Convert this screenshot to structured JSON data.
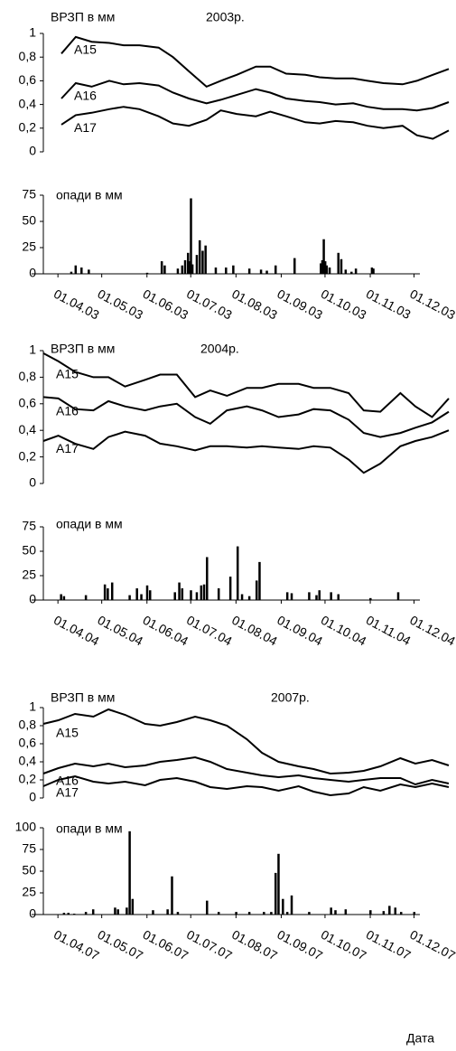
{
  "chart_data": [
    {
      "type": "line",
      "title": "ВРЗП в мм",
      "subtitle": "2003р.",
      "x": [
        "01.04.03",
        "10.04.03",
        "20.04.03",
        "01.05.03",
        "10.05.03",
        "20.05.03",
        "01.06.03",
        "10.06.03",
        "20.06.03",
        "01.07.03",
        "10.07.03",
        "20.07.03",
        "01.08.03",
        "10.08.03",
        "20.08.03",
        "01.09.03",
        "10.09.03",
        "20.09.03",
        "01.10.03",
        "10.10.03",
        "20.10.03",
        "01.11.03",
        "10.11.03",
        "20.11.03",
        "30.11.03"
      ],
      "xlim": [
        "01.04.03",
        "30.11.03"
      ],
      "ylim": [
        0,
        1
      ],
      "yticks": [
        0,
        {
          "value": 0.2,
          "label": "0,2"
        },
        {
          "value": 0.4,
          "label": "0,4"
        },
        {
          "value": 0.6,
          "label": "0,6"
        },
        {
          "value": 0.8,
          "label": "0,8"
        },
        1
      ],
      "series": [
        {
          "name": "A15",
          "color": "#000000",
          "values": [
            0.83,
            0.97,
            0.93,
            0.92,
            0.9,
            0.9,
            0.88,
            0.8,
            0.68,
            0.55,
            0.6,
            0.65,
            0.72,
            0.72,
            0.66,
            0.65,
            0.63,
            0.62,
            0.62,
            0.6,
            0.58,
            0.57,
            0.6,
            0.65,
            0.7
          ]
        },
        {
          "name": "A16",
          "color": "#000000",
          "values": [
            0.45,
            0.58,
            0.55,
            0.6,
            0.57,
            0.58,
            0.56,
            0.5,
            0.45,
            0.41,
            0.44,
            0.48,
            0.53,
            0.5,
            0.45,
            0.43,
            0.42,
            0.4,
            0.41,
            0.38,
            0.36,
            0.36,
            0.35,
            0.37,
            0.42
          ]
        },
        {
          "name": "A17",
          "color": "#000000",
          "values": [
            0.23,
            0.31,
            0.33,
            0.36,
            0.38,
            0.36,
            0.3,
            0.24,
            0.22,
            0.27,
            0.35,
            0.32,
            0.3,
            0.34,
            0.3,
            0.25,
            0.24,
            0.26,
            0.25,
            0.22,
            0.2,
            0.22,
            0.14,
            0.11,
            0.18
          ]
        }
      ]
    },
    {
      "type": "bar",
      "title": "опади в мм",
      "color": "#000000",
      "x": [
        "10.04.03",
        "13.04.03",
        "17.04.03",
        "22.04.03",
        "01.06.03",
        "11.06.03",
        "13.06.03",
        "22.06.03",
        "25.06.03",
        "27.06.03",
        "29.06.03",
        "30.06.03",
        "01.07.03",
        "02.07.03",
        "05.07.03",
        "07.07.03",
        "09.07.03",
        "11.07.03",
        "18.07.03",
        "25.07.03",
        "30.07.03",
        "10.08.03",
        "18.08.03",
        "22.08.03",
        "28.08.03",
        "10.09.03",
        "28.09.03",
        "29.09.03",
        "30.09.03",
        "01.10.03",
        "02.10.03",
        "04.10.03",
        "10.10.03",
        "12.10.03",
        "15.10.03",
        "19.10.03",
        "22.10.03",
        "02.11.03",
        "03.11.03"
      ],
      "values": [
        2,
        8,
        6,
        4,
        1,
        12,
        8,
        5,
        8,
        13,
        20,
        12,
        72,
        9,
        18,
        32,
        22,
        27,
        6,
        6,
        8,
        5,
        4,
        3,
        8,
        15,
        10,
        13,
        33,
        12,
        8,
        6,
        20,
        14,
        4,
        2,
        5,
        6,
        5
      ],
      "xlim": [
        "22.03.03",
        "05.12.03"
      ],
      "xticks": [
        "01.04.03",
        "01.05.03",
        "01.06.03",
        "01.07.03",
        "01.08.03",
        "01.09.03",
        "01.10.03",
        "01.11.03",
        "01.12.03"
      ],
      "ylim": [
        0,
        75
      ],
      "yticks": [
        0,
        25,
        50,
        75
      ]
    },
    {
      "type": "line",
      "title": "ВРЗП в мм",
      "subtitle": "2004р.",
      "x": [
        "01.04.04",
        "10.04.04",
        "20.04.04",
        "01.05.04",
        "10.05.04",
        "20.05.04",
        "01.06.04",
        "10.06.04",
        "20.06.04",
        "01.07.04",
        "10.07.04",
        "20.07.04",
        "01.08.04",
        "10.08.04",
        "20.08.04",
        "01.09.04",
        "10.09.04",
        "20.09.04",
        "01.10.04",
        "10.10.04",
        "20.10.04",
        "01.11.04",
        "10.11.04",
        "20.11.04",
        "30.11.04"
      ],
      "xlim": [
        "01.04.04",
        "30.11.04"
      ],
      "ylim": [
        0,
        1
      ],
      "yticks": [
        0,
        {
          "value": 0.2,
          "label": "0,2"
        },
        {
          "value": 0.4,
          "label": "0,4"
        },
        {
          "value": 0.6,
          "label": "0,6"
        },
        {
          "value": 0.8,
          "label": "0,8"
        },
        1
      ],
      "series": [
        {
          "name": "A15",
          "color": "#000000",
          "values": [
            0.98,
            0.92,
            0.84,
            0.8,
            0.8,
            0.73,
            0.78,
            0.82,
            0.82,
            0.65,
            0.7,
            0.66,
            0.72,
            0.72,
            0.75,
            0.75,
            0.72,
            0.72,
            0.68,
            0.55,
            0.54,
            0.68,
            0.58,
            0.5,
            0.64
          ]
        },
        {
          "name": "A16",
          "color": "#000000",
          "values": [
            0.65,
            0.64,
            0.56,
            0.55,
            0.62,
            0.58,
            0.55,
            0.58,
            0.6,
            0.5,
            0.45,
            0.55,
            0.58,
            0.55,
            0.5,
            0.52,
            0.56,
            0.55,
            0.48,
            0.38,
            0.35,
            0.38,
            0.42,
            0.46,
            0.54
          ]
        },
        {
          "name": "A17",
          "color": "#000000",
          "values": [
            0.32,
            0.36,
            0.3,
            0.26,
            0.35,
            0.39,
            0.36,
            0.3,
            0.28,
            0.25,
            0.28,
            0.28,
            0.27,
            0.28,
            0.27,
            0.26,
            0.28,
            0.27,
            0.18,
            0.08,
            0.15,
            0.28,
            0.32,
            0.35,
            0.4
          ]
        }
      ]
    },
    {
      "type": "bar",
      "title": "опади в мм",
      "color": "#000000",
      "x": [
        "03.04.04",
        "05.04.04",
        "20.04.04",
        "03.05.04",
        "05.05.04",
        "08.05.04",
        "20.05.04",
        "25.05.04",
        "28.05.04",
        "01.06.04",
        "03.06.04",
        "20.06.04",
        "23.06.04",
        "25.06.04",
        "01.07.04",
        "05.07.04",
        "08.07.04",
        "10.07.04",
        "12.07.04",
        "20.07.04",
        "28.07.04",
        "02.08.04",
        "05.08.04",
        "10.08.04",
        "15.08.04",
        "17.08.04",
        "05.09.04",
        "08.09.04",
        "20.09.04",
        "25.09.04",
        "27.09.04",
        "05.10.04",
        "10.10.04",
        "01.11.04",
        "20.11.04"
      ],
      "values": [
        6,
        4,
        5,
        16,
        12,
        18,
        5,
        12,
        6,
        15,
        10,
        8,
        18,
        12,
        10,
        8,
        15,
        16,
        44,
        12,
        24,
        55,
        6,
        4,
        20,
        39,
        8,
        7,
        8,
        5,
        10,
        8,
        6,
        2,
        8
      ],
      "xlim": [
        "22.03.04",
        "05.12.04"
      ],
      "xticks": [
        "01.04.04",
        "01.05.04",
        "01.06.04",
        "01.07.04",
        "01.08.04",
        "01.09.04",
        "01.10.04",
        "01.11.04",
        "01.12.04"
      ],
      "ylim": [
        0,
        75
      ],
      "yticks": [
        0,
        25,
        50,
        75
      ]
    },
    {
      "type": "line",
      "title": "ВРЗП в мм",
      "subtitle": "2007р.",
      "x": [
        "01.04.07",
        "10.04.07",
        "20.04.07",
        "01.05.07",
        "10.05.07",
        "20.05.07",
        "01.06.07",
        "10.06.07",
        "20.06.07",
        "01.07.07",
        "10.07.07",
        "20.07.07",
        "01.08.07",
        "10.08.07",
        "20.08.07",
        "01.09.07",
        "10.09.07",
        "20.09.07",
        "01.10.07",
        "10.10.07",
        "20.10.07",
        "01.11.07",
        "10.11.07",
        "20.11.07",
        "30.11.07"
      ],
      "xlim": [
        "01.04.07",
        "30.11.07"
      ],
      "ylim": [
        0,
        1
      ],
      "yticks": [
        0,
        {
          "value": 0.2,
          "label": "0,2"
        },
        {
          "value": 0.4,
          "label": "0,4"
        },
        {
          "value": 0.6,
          "label": "0,6"
        },
        {
          "value": 0.8,
          "label": "0,8"
        },
        1
      ],
      "series": [
        {
          "name": "A15",
          "color": "#000000",
          "values": [
            0.82,
            0.86,
            0.93,
            0.9,
            0.98,
            0.92,
            0.82,
            0.8,
            0.84,
            0.9,
            0.86,
            0.8,
            0.65,
            0.5,
            0.4,
            0.35,
            0.32,
            0.27,
            0.28,
            0.3,
            0.35,
            0.44,
            0.38,
            0.42,
            0.36
          ]
        },
        {
          "name": "A16",
          "color": "#000000",
          "values": [
            0.27,
            0.33,
            0.38,
            0.35,
            0.38,
            0.34,
            0.36,
            0.4,
            0.42,
            0.45,
            0.4,
            0.32,
            0.28,
            0.25,
            0.23,
            0.25,
            0.22,
            0.2,
            0.18,
            0.2,
            0.22,
            0.22,
            0.15,
            0.2,
            0.16
          ]
        },
        {
          "name": "A17",
          "color": "#000000",
          "values": [
            0.13,
            0.2,
            0.24,
            0.18,
            0.16,
            0.18,
            0.14,
            0.2,
            0.22,
            0.18,
            0.12,
            0.1,
            0.13,
            0.12,
            0.08,
            0.13,
            0.07,
            0.03,
            0.05,
            0.12,
            0.08,
            0.15,
            0.12,
            0.16,
            0.12
          ]
        }
      ]
    },
    {
      "type": "bar",
      "title": "опади в мм",
      "color": "#000000",
      "x_label": "Дата",
      "x": [
        "05.04.07",
        "08.04.07",
        "12.04.07",
        "20.04.07",
        "25.04.07",
        "10.05.07",
        "12.05.07",
        "18.05.07",
        "20.05.07",
        "22.05.07",
        "05.06.07",
        "15.06.07",
        "18.06.07",
        "22.06.07",
        "12.07.07",
        "20.07.07",
        "01.08.07",
        "10.08.07",
        "20.08.07",
        "25.08.07",
        "28.08.07",
        "30.08.07",
        "02.09.07",
        "05.09.07",
        "08.09.07",
        "20.09.07",
        "05.10.07",
        "08.10.07",
        "15.10.07",
        "01.11.07",
        "10.11.07",
        "14.11.07",
        "18.11.07",
        "22.11.07",
        "01.12.07"
      ],
      "values": [
        2,
        2,
        1,
        3,
        6,
        8,
        6,
        8,
        96,
        18,
        5,
        6,
        44,
        3,
        16,
        3,
        3,
        3,
        3,
        3,
        48,
        70,
        18,
        3,
        22,
        3,
        8,
        5,
        6,
        5,
        4,
        10,
        8,
        3,
        3
      ],
      "xlim": [
        "22.03.07",
        "05.12.07"
      ],
      "xticks": [
        "01.04.07",
        "01.05.07",
        "01.06.07",
        "01.07.07",
        "01.08.07",
        "01.09.07",
        "01.10.07",
        "01.11.07",
        "01.12.07"
      ],
      "ylim": [
        0,
        100
      ],
      "yticks": [
        0,
        25,
        50,
        75,
        100
      ]
    }
  ]
}
